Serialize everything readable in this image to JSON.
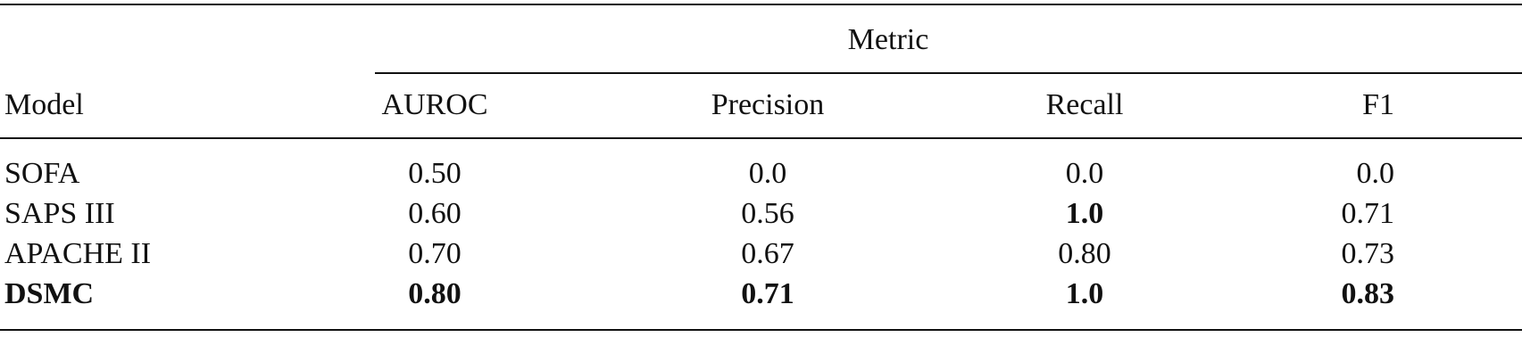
{
  "table": {
    "group_header": "Metric",
    "columns": [
      "Model",
      "AUROC",
      "Precision",
      "Recall",
      "F1"
    ],
    "rows": [
      {
        "cells": [
          "SOFA",
          "0.50",
          "0.0",
          "0.0",
          "0.0"
        ],
        "bold": [
          false,
          false,
          false,
          false,
          false
        ]
      },
      {
        "cells": [
          "SAPS III",
          "0.60",
          "0.56",
          "1.0",
          "0.71"
        ],
        "bold": [
          false,
          false,
          false,
          true,
          false
        ]
      },
      {
        "cells": [
          "APACHE II",
          "0.70",
          "0.67",
          "0.80",
          "0.73"
        ],
        "bold": [
          false,
          false,
          false,
          false,
          false
        ]
      },
      {
        "cells": [
          "DSMC",
          "0.80",
          "0.71",
          "1.0",
          "0.83"
        ],
        "bold": [
          true,
          true,
          true,
          true,
          true
        ]
      }
    ]
  }
}
